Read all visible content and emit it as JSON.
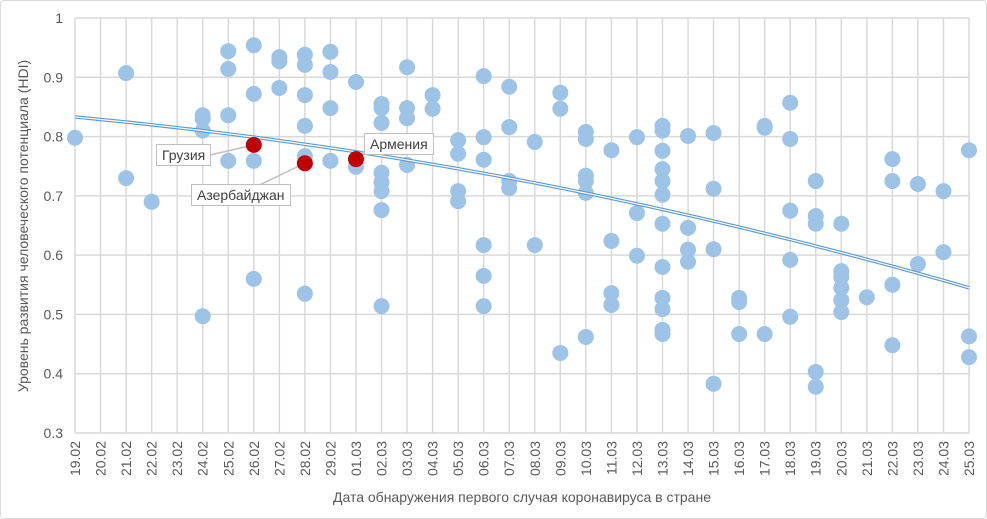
{
  "chart_data": {
    "type": "scatter",
    "xlabel": "Дата обнаружения первого случая коронавируса в стране",
    "ylabel": "Уровень развития человеческого потенциала (HDI)",
    "ylim": [
      0.3,
      1
    ],
    "yticks": [
      "0.3",
      "0.4",
      "0.5",
      "0.6",
      "0.7",
      "0.8",
      "0.9",
      "1"
    ],
    "grid": true,
    "categories": [
      "19.02",
      "20.02",
      "21.02",
      "22.02",
      "23.02",
      "24.02",
      "25.02",
      "26.02",
      "27.02",
      "28.02",
      "29.02",
      "01.03",
      "02.03",
      "03.03",
      "04.03",
      "05.03",
      "06.03",
      "07.03",
      "08.03",
      "09.03",
      "10.03",
      "11.03",
      "12.03",
      "13.03",
      "14.03",
      "15.03",
      "16.03",
      "17.03",
      "18.03",
      "19.03",
      "20.03",
      "21.03",
      "22.03",
      "23.03",
      "24.03",
      "25.03"
    ],
    "points": {
      "19.02": [
        0.798
      ],
      "21.02": [
        0.907,
        0.73
      ],
      "22.02": [
        0.69
      ],
      "24.02": [
        0.836,
        0.83,
        0.81,
        0.497
      ],
      "25.02": [
        0.944,
        0.914,
        0.836,
        0.759
      ],
      "26.02": [
        0.954,
        0.872,
        0.759,
        0.56
      ],
      "27.02": [
        0.934,
        0.927,
        0.882
      ],
      "28.02": [
        0.938,
        0.921,
        0.87,
        0.818,
        0.767,
        0.535
      ],
      "29.02": [
        0.943,
        0.909,
        0.848,
        0.759
      ],
      "01.03": [
        0.892,
        0.749
      ],
      "02.03": [
        0.855,
        0.848,
        0.823,
        0.739,
        0.723,
        0.708,
        0.676,
        0.514
      ],
      "03.03": [
        0.917,
        0.848,
        0.831,
        0.752
      ],
      "04.03": [
        0.87,
        0.847
      ],
      "05.03": [
        0.794,
        0.771,
        0.708,
        0.691
      ],
      "06.03": [
        0.902,
        0.799,
        0.761,
        0.617,
        0.565,
        0.514
      ],
      "07.03": [
        0.884,
        0.816,
        0.725,
        0.713
      ],
      "08.03": [
        0.791,
        0.617
      ],
      "09.03": [
        0.874,
        0.847,
        0.435
      ],
      "10.03": [
        0.808,
        0.796,
        0.734,
        0.725,
        0.705,
        0.462
      ],
      "11.03": [
        0.777,
        0.624,
        0.536,
        0.516
      ],
      "12.03": [
        0.799,
        0.671,
        0.599
      ],
      "13.03": [
        0.818,
        0.81,
        0.776,
        0.745,
        0.725,
        0.702,
        0.653,
        0.58,
        0.528,
        0.509,
        0.474,
        0.467
      ],
      "14.03": [
        0.801,
        0.646,
        0.609,
        0.589
      ],
      "15.03": [
        0.806,
        0.712,
        0.61,
        0.383
      ],
      "16.03": [
        0.528,
        0.521,
        0.467
      ],
      "17.03": [
        0.818,
        0.815,
        0.467
      ],
      "18.03": [
        0.857,
        0.796,
        0.675,
        0.592,
        0.496
      ],
      "19.03": [
        0.725,
        0.666,
        0.653,
        0.403,
        0.378
      ],
      "20.03": [
        0.653,
        0.573,
        0.563,
        0.545,
        0.524,
        0.504
      ],
      "21.03": [
        0.529
      ],
      "22.03": [
        0.762,
        0.725,
        0.55,
        0.448
      ],
      "23.03": [
        0.72,
        0.585
      ],
      "24.03": [
        0.708,
        0.605
      ],
      "25.03": [
        0.777,
        0.463,
        0.428
      ]
    },
    "highlighted": [
      {
        "label": "Грузия",
        "x": "26.02",
        "y": 0.786
      },
      {
        "label": "Азербайджан",
        "x": "28.02",
        "y": 0.755
      },
      {
        "label": "Армения",
        "x": "01.03",
        "y": 0.762
      }
    ],
    "trendline": {
      "type": "polynomial",
      "order": 2,
      "start": 0.833,
      "end": 0.545,
      "mid_value_at_07.03": 0.73
    },
    "colors": {
      "points": "#9dc3e6",
      "highlight": "#c00000",
      "trendline": "#5b9bd5",
      "grid": "#d9d9d9",
      "text": "#595959"
    }
  }
}
